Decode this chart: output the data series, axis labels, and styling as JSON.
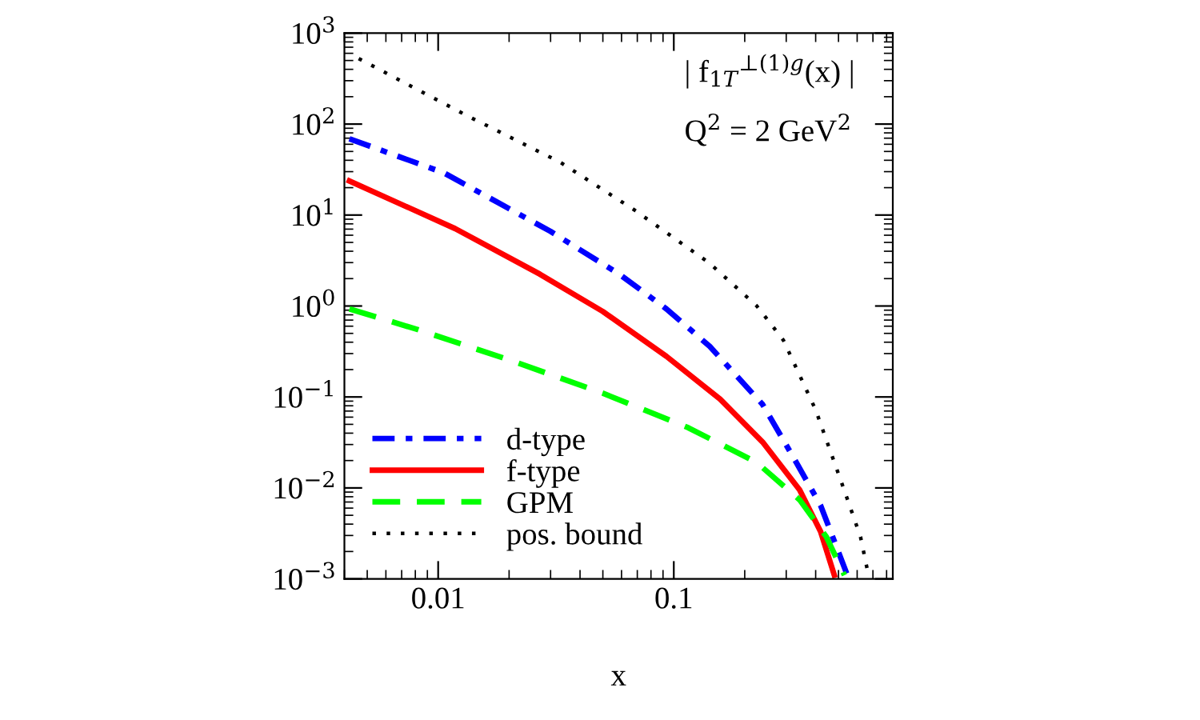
{
  "chart_data": {
    "type": "line",
    "xlabel": "x",
    "log": "xy",
    "xlim": [
      0.004,
      0.85
    ],
    "ylim": [
      0.001,
      1000
    ],
    "xticks": [
      0.01,
      0.1
    ],
    "yticks": [
      {
        "value": 0.001,
        "label": "10$^{−3}$"
      },
      {
        "value": 0.01,
        "label": "10$^{−2}$"
      },
      {
        "value": 0.1,
        "label": "10$^{−1}$"
      },
      {
        "value": 1,
        "label": "10$^{0}$"
      },
      {
        "value": 10,
        "label": "10$^{1}$"
      },
      {
        "value": 100,
        "label": "10$^{2}$"
      },
      {
        "value": 1000,
        "label": "10$^{3}$"
      }
    ],
    "grid": false,
    "legend": "bottom left",
    "annotations": [
      "| f$_{1T}$$^{⊥(1)g}$(x) |",
      "Q$^{2}$ = 2 GeV$^{2}$"
    ],
    "series": [
      {
        "name": "d-type",
        "color": "#0000ff",
        "line_style": "dashdot",
        "x": [
          0.0042,
          0.0106,
          0.03,
          0.0587,
          0.093,
          0.142,
          0.238,
          0.324,
          0.42,
          0.545
        ],
        "values": [
          69,
          29,
          6.6,
          2.24,
          0.93,
          0.36,
          0.083,
          0.021,
          0.0064,
          0.0011
        ]
      },
      {
        "name": "f-type",
        "color": "#ff0000",
        "line_style": "solid",
        "x": [
          0.0042,
          0.0118,
          0.027,
          0.05,
          0.093,
          0.157,
          0.238,
          0.342,
          0.42,
          0.48
        ],
        "values": [
          23.7,
          7.1,
          2.24,
          0.87,
          0.28,
          0.095,
          0.032,
          0.0095,
          0.0033,
          0.0011
        ]
      },
      {
        "name": "GPM",
        "color": "#00ff00",
        "line_style": "dashed",
        "x": [
          0.0042,
          0.0082,
          0.021,
          0.05,
          0.115,
          0.225,
          0.342,
          0.444,
          0.53
        ],
        "values": [
          0.93,
          0.55,
          0.245,
          0.11,
          0.046,
          0.019,
          0.0074,
          0.0029,
          0.0011
        ]
      },
      {
        "name": "pos. bound",
        "color": "#000000",
        "line_style": "dotted",
        "x": [
          0.0046,
          0.013,
          0.033,
          0.0686,
          0.142,
          0.225,
          0.292,
          0.4,
          0.518,
          0.62,
          0.67
        ],
        "values": [
          525,
          127,
          38,
          11.2,
          2.95,
          1.0,
          0.42,
          0.072,
          0.011,
          0.0029,
          0.0011
        ]
      }
    ]
  }
}
